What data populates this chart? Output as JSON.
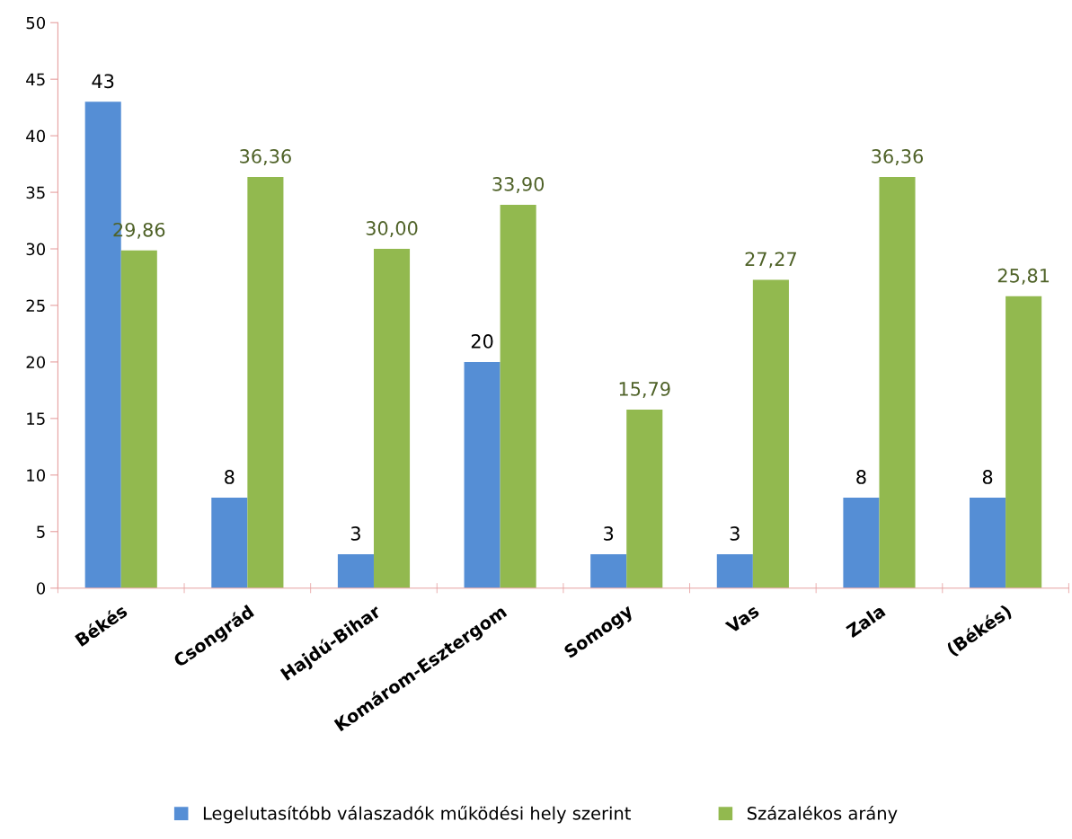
{
  "chart_data": {
    "type": "bar",
    "categories": [
      "Békés",
      "Csongrád",
      "Hajdú-Bihar",
      "Komárom-Esztergom",
      "Somogy",
      "Vas",
      "Zala",
      "(Békés)"
    ],
    "series": [
      {
        "name": "Legelutasítóbb válaszadók működési hely szerint",
        "color": "#558ed5",
        "values": [
          43,
          8,
          3,
          20,
          3,
          3,
          8,
          8
        ],
        "value_labels": [
          "43",
          "8",
          "3",
          "20",
          "3",
          "3",
          "8",
          "8"
        ]
      },
      {
        "name": "Százalékos arány",
        "color": "#92b94f",
        "values": [
          29.86,
          36.36,
          30.0,
          33.9,
          15.79,
          27.27,
          36.36,
          25.81
        ],
        "value_labels": [
          "29,86",
          "36,36",
          "30,00",
          "33,90",
          "15,79",
          "27,27",
          "36,36",
          "25,81"
        ]
      }
    ],
    "ylim": [
      0,
      50
    ],
    "yticks": [
      0,
      5,
      10,
      15,
      20,
      25,
      30,
      35,
      40,
      45,
      50
    ],
    "grid": false,
    "legend": "bottom"
  }
}
